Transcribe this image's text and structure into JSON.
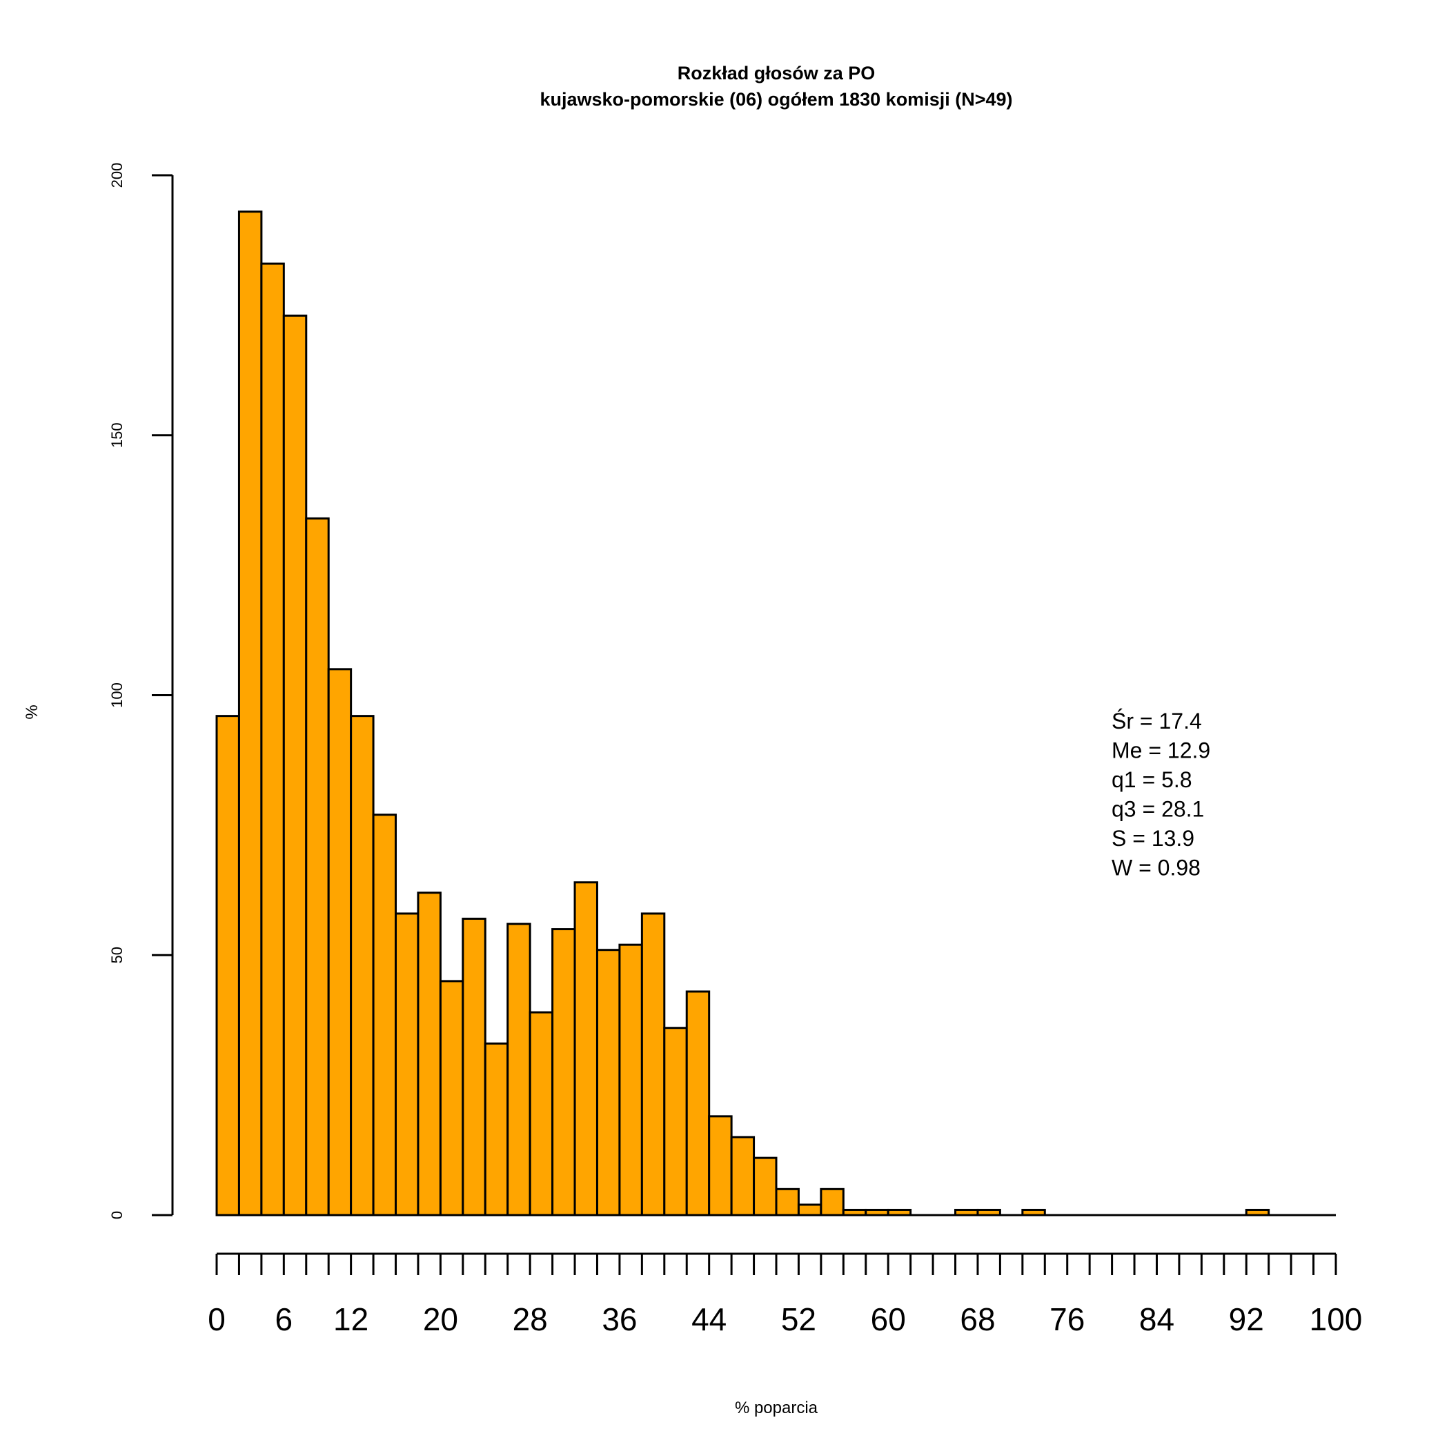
{
  "chart_data": {
    "type": "bar",
    "title": "Rozkład głosów za PO",
    "subtitle": "kujawsko-pomorskie (06) ogółem 1830 komisji (N>49)",
    "xlabel": "% poparcia",
    "ylabel": "%",
    "xlim": [
      0,
      100
    ],
    "ylim": [
      0,
      200
    ],
    "grid": false,
    "bar_color": "#FFA500",
    "bin_width": 2,
    "bin_starts": [
      0,
      2,
      4,
      6,
      8,
      10,
      12,
      14,
      16,
      18,
      20,
      22,
      24,
      26,
      28,
      30,
      32,
      34,
      36,
      38,
      40,
      42,
      44,
      46,
      48,
      50,
      52,
      54,
      56,
      58,
      60,
      62,
      64,
      66,
      68,
      70,
      72,
      74,
      76,
      78,
      80,
      82,
      84,
      86,
      88,
      90,
      92,
      94,
      96,
      98
    ],
    "values": [
      96,
      193,
      183,
      173,
      134,
      105,
      96,
      77,
      58,
      62,
      45,
      57,
      33,
      56,
      39,
      55,
      64,
      51,
      52,
      58,
      36,
      43,
      19,
      15,
      11,
      5,
      2,
      5,
      1,
      1,
      1,
      0,
      0,
      1,
      1,
      0,
      1,
      0,
      0,
      0,
      0,
      0,
      0,
      0,
      0,
      0,
      1,
      0,
      0,
      0
    ],
    "y_ticks": [
      "0",
      "50",
      "100",
      "150",
      "200"
    ],
    "x_ticks": [
      "0",
      "6",
      "12",
      "20",
      "28",
      "36",
      "44",
      "52",
      "60",
      "68",
      "76",
      "84",
      "92",
      "100"
    ],
    "stats": [
      "Śr = 17.4",
      "Me = 12.9",
      "q1 = 5.8",
      "q3 = 28.1",
      "S = 13.9",
      "W = 0.98"
    ]
  }
}
